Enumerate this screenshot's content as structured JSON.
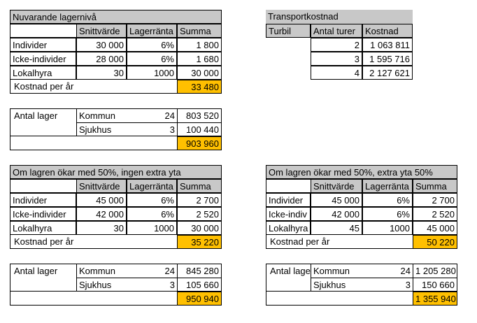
{
  "current": {
    "title": "Nuvarande lagernivå",
    "headers": [
      "Snittvärde",
      "Lagerränta",
      "Summa"
    ],
    "rows": [
      {
        "label": "Individer",
        "snitt": "30 000",
        "ranta": "6%",
        "summa": "1 800"
      },
      {
        "label": "Icke-individer",
        "snitt": "28 000",
        "ranta": "6%",
        "summa": "1 680"
      },
      {
        "label": "Lokalhyra",
        "snitt": "30",
        "ranta": "1000",
        "summa": "30 000"
      }
    ],
    "cost_label": "Kostnad per år",
    "cost_value": "33 480",
    "antal_label": "Antal lager",
    "antal": [
      {
        "name": "Kommun",
        "count": "24",
        "sum": "803 520"
      },
      {
        "name": "Sjukhus",
        "count": "3",
        "sum": "100 440"
      }
    ],
    "antal_total": "903 960"
  },
  "transport": {
    "title": "Transportkostnad",
    "headers": [
      "Turbil",
      "Antal turer",
      "Kostnad"
    ],
    "rows": [
      {
        "turer": "2",
        "kostnad": "1 063 811"
      },
      {
        "turer": "3",
        "kostnad": "1 595 716"
      },
      {
        "turer": "4",
        "kostnad": "2 127 621"
      }
    ]
  },
  "no_extra": {
    "title": "Om lagren ökar med 50%, ingen extra yta",
    "headers": [
      "Snittvärde",
      "Lagerränta",
      "Summa"
    ],
    "rows": [
      {
        "label": "Individer",
        "snitt": "45 000",
        "ranta": "6%",
        "summa": "2 700"
      },
      {
        "label": "Icke-individer",
        "snitt": "42 000",
        "ranta": "6%",
        "summa": "2 520"
      },
      {
        "label": "Lokalhyra",
        "snitt": "30",
        "ranta": "1000",
        "summa": "30 000"
      }
    ],
    "cost_label": "Kostnad per år",
    "cost_value": "35 220",
    "antal_label": "Antal lager",
    "antal": [
      {
        "name": "Kommun",
        "count": "24",
        "sum": "845 280"
      },
      {
        "name": "Sjukhus",
        "count": "3",
        "sum": "105 660"
      }
    ],
    "antal_total": "950 940"
  },
  "extra": {
    "title": "Om lagren ökar med 50%, extra yta 50%",
    "headers": [
      "Snittvärde",
      "Lagerränta",
      "Summa"
    ],
    "rows": [
      {
        "label": "Individer",
        "snitt": "45 000",
        "ranta": "6%",
        "summa": "2 700"
      },
      {
        "label": "Icke-indiv",
        "snitt": "42 000",
        "ranta": "6%",
        "summa": "2 520"
      },
      {
        "label": "Lokalhyra",
        "snitt": "45",
        "ranta": "1000",
        "summa": "45 000"
      }
    ],
    "cost_label": "Kostnad per år",
    "cost_value": "50 220",
    "antal_label": "Antal lage",
    "antal": [
      {
        "name": "Kommun",
        "count": "24",
        "sum": "1 205 280"
      },
      {
        "name": "Sjukhus",
        "count": "3",
        "sum": "150 660"
      }
    ],
    "antal_total": "1 355 940"
  }
}
